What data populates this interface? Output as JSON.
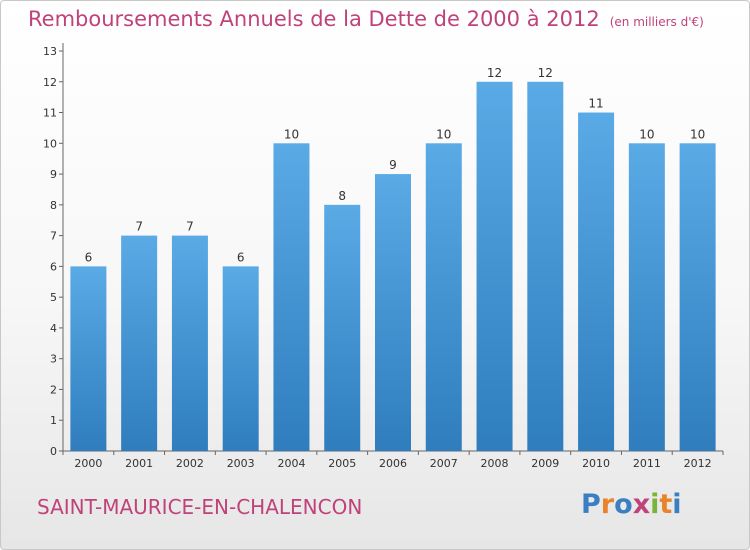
{
  "title": "Remboursements Annuels de la Dette de 2000 à 2012",
  "unit": "(en milliers d'€)",
  "commune": "SAINT-MAURICE-EN-CHALENCON",
  "logo": {
    "text": "Proxiti",
    "colors": [
      "#3a7fc1",
      "#e8832a",
      "#3a7fc1",
      "#c0427a",
      "#7ab33a",
      "#e8832a",
      "#3a7fc1"
    ]
  },
  "colors": {
    "bar_top": "#5aaae6",
    "bar_bottom": "#2f7dbd",
    "title": "#c0427a",
    "axis": "#666666",
    "text": "#333333"
  },
  "chart_data": {
    "type": "bar",
    "title": "Remboursements Annuels de la Dette de 2000 à 2012",
    "subtitle": "(en milliers d'€)",
    "categories": [
      "2000",
      "2001",
      "2002",
      "2003",
      "2004",
      "2005",
      "2006",
      "2007",
      "2008",
      "2009",
      "2010",
      "2011",
      "2012"
    ],
    "values": [
      6,
      7,
      7,
      6,
      10,
      8,
      9,
      10,
      12,
      12,
      11,
      10,
      10
    ],
    "data_labels": [
      "6",
      "7",
      "7",
      "6",
      "10",
      "8",
      "9",
      "10",
      "12",
      "12",
      "11",
      "10",
      "10"
    ],
    "ylim": [
      0,
      13
    ],
    "yticks": [
      0,
      1,
      2,
      3,
      4,
      5,
      6,
      7,
      8,
      9,
      10,
      11,
      12,
      13
    ],
    "grid": false,
    "legend": "none"
  }
}
